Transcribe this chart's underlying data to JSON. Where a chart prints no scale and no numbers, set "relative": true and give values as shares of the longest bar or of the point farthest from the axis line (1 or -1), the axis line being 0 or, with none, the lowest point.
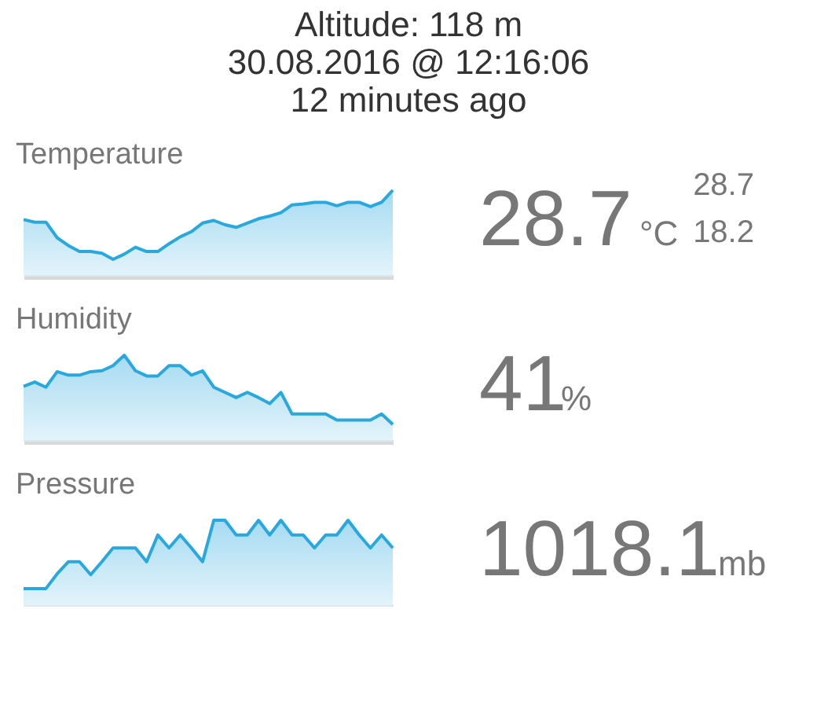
{
  "chart_data": [
    {
      "type": "area",
      "title": "Altitude: 118 m\n30.08.2016 @ 12:16:06\n12 minutes ago",
      "subtitle": "Temperature",
      "relative": true,
      "categories": [
        null,
        null,
        null,
        null,
        null,
        null,
        null,
        null,
        null,
        null,
        null,
        null,
        null,
        null,
        null,
        null,
        null,
        null,
        null,
        null,
        null,
        null,
        null,
        null,
        null,
        null,
        null,
        null,
        null,
        null,
        null,
        null,
        null,
        null
      ],
      "annotations": [
        "28.7",
        "°C",
        "28.7",
        "18.2"
      ],
      "series": [
        {
          "color": "#29a8e0",
          "values": [
            0.66,
            0.63,
            0.63,
            0.45,
            0.36,
            0.29,
            0.29,
            0.27,
            0.2,
            0.26,
            0.34,
            0.29,
            0.29,
            0.38,
            0.46,
            0.52,
            0.62,
            0.65,
            0.6,
            0.57,
            0.62,
            0.67,
            0.7,
            0.74,
            0.83,
            0.84,
            0.86,
            0.86,
            0.82,
            0.86,
            0.86,
            0.81,
            0.86,
            1
          ]
        }
      ]
    },
    {
      "type": "area",
      "subtitle": "Humidity",
      "relative": true,
      "categories": [
        null,
        null,
        null,
        null,
        null,
        null,
        null,
        null,
        null,
        null,
        null,
        null,
        null,
        null,
        null,
        null,
        null,
        null,
        null,
        null,
        null,
        null,
        null,
        null,
        null,
        null,
        null,
        null,
        null,
        null,
        null,
        null,
        null,
        null
      ],
      "annotations": [
        "41",
        "%"
      ],
      "series": [
        {
          "color": "#29a8e0",
          "values": [
            0.64,
            0.69,
            0.63,
            0.81,
            0.77,
            0.77,
            0.81,
            0.82,
            0.88,
            1,
            0.82,
            0.76,
            0.76,
            0.88,
            0.88,
            0.77,
            0.82,
            0.63,
            0.57,
            0.51,
            0.57,
            0.51,
            0.44,
            0.57,
            0.32,
            0.32,
            0.32,
            0.32,
            0.25,
            0.25,
            0.25,
            0.25,
            0.32,
            0.2
          ]
        }
      ]
    },
    {
      "type": "area",
      "subtitle": "Pressure",
      "relative": true,
      "categories": [
        null,
        null,
        null,
        null,
        null,
        null,
        null,
        null,
        null,
        null,
        null,
        null,
        null,
        null,
        null,
        null,
        null,
        null,
        null,
        null,
        null,
        null,
        null,
        null,
        null,
        null,
        null,
        null,
        null,
        null,
        null,
        null,
        null,
        null
      ],
      "annotations": [
        "1018.1",
        "mb"
      ],
      "series": [
        {
          "color": "#29a8e0",
          "values": [
            0.21,
            0.21,
            0.21,
            0.38,
            0.52,
            0.52,
            0.37,
            0.52,
            0.68,
            0.68,
            0.68,
            0.52,
            0.83,
            0.68,
            0.83,
            0.68,
            0.52,
            1,
            1,
            0.83,
            0.83,
            1,
            0.83,
            1,
            0.83,
            0.83,
            0.68,
            0.83,
            0.83,
            1,
            0.83,
            0.68,
            0.83,
            0.68
          ]
        }
      ]
    }
  ]
}
